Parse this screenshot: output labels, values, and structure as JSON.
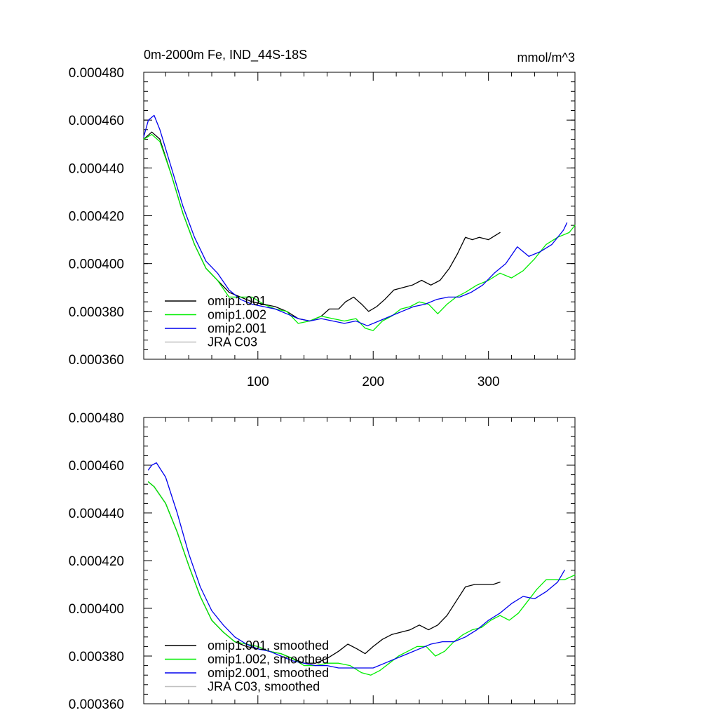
{
  "chart_data": [
    {
      "type": "line",
      "title": "0m-2000m Fe, IND_44S-18S",
      "units": "mmol/m^3",
      "xlim": [
        1,
        375
      ],
      "ylim": [
        0.00036,
        0.00048
      ],
      "yticks": [
        "0.000360",
        "0.000380",
        "0.000400",
        "0.000420",
        "0.000440",
        "0.000460",
        "0.000480"
      ],
      "xticks": [
        "100",
        "200",
        "300"
      ],
      "show_x_labels": true,
      "legend_position": "bottom-left",
      "series": [
        {
          "name": "omip1.001",
          "color": "#000000",
          "x": [
            1,
            8,
            15,
            25,
            35,
            45,
            55,
            65,
            75,
            85,
            95,
            105,
            115,
            125,
            135,
            145,
            155,
            162,
            170,
            176,
            183,
            190,
            196,
            203,
            210,
            218,
            226,
            234,
            242,
            250,
            258,
            266,
            273,
            280,
            286,
            292,
            300,
            310
          ],
          "y": [
            0.000452,
            0.000455,
            0.000452,
            0.000437,
            0.000421,
            0.000408,
            0.000398,
            0.000393,
            0.000388,
            0.000386,
            0.000384,
            0.000383,
            0.000382,
            0.00038,
            0.000377,
            0.000376,
            0.000378,
            0.000381,
            0.000381,
            0.000384,
            0.000386,
            0.000383,
            0.00038,
            0.000382,
            0.000385,
            0.000389,
            0.00039,
            0.000391,
            0.000393,
            0.000391,
            0.000393,
            0.000398,
            0.000404,
            0.000411,
            0.00041,
            0.000411,
            0.00041,
            0.000413
          ]
        },
        {
          "name": "omip1.002",
          "color": "#00ee00",
          "x": [
            1,
            8,
            15,
            25,
            35,
            45,
            55,
            65,
            75,
            85,
            95,
            105,
            115,
            125,
            135,
            145,
            155,
            165,
            175,
            185,
            193,
            200,
            208,
            216,
            224,
            232,
            240,
            248,
            256,
            264,
            272,
            280,
            290,
            300,
            310,
            320,
            330,
            340,
            350,
            360,
            370,
            375
          ],
          "y": [
            0.000452,
            0.000454,
            0.000451,
            0.000437,
            0.000421,
            0.000408,
            0.000398,
            0.000393,
            0.000386,
            0.000386,
            0.000386,
            0.000383,
            0.000381,
            0.00038,
            0.000375,
            0.000376,
            0.000378,
            0.000377,
            0.000376,
            0.000377,
            0.000373,
            0.000372,
            0.000376,
            0.000378,
            0.000381,
            0.000382,
            0.000384,
            0.000383,
            0.000379,
            0.000383,
            0.000386,
            0.000388,
            0.000391,
            0.000393,
            0.000396,
            0.000394,
            0.000397,
            0.000402,
            0.000408,
            0.000411,
            0.000413,
            0.000416
          ]
        },
        {
          "name": "omip2.001",
          "color": "#0000ee",
          "x": [
            1,
            5,
            10,
            15,
            25,
            35,
            45,
            55,
            65,
            75,
            85,
            95,
            105,
            115,
            125,
            135,
            145,
            155,
            165,
            175,
            185,
            195,
            205,
            215,
            225,
            235,
            245,
            255,
            265,
            275,
            285,
            295,
            305,
            315,
            325,
            335,
            345,
            355,
            365,
            368
          ],
          "y": [
            0.000453,
            0.00046,
            0.000462,
            0.000456,
            0.00044,
            0.000424,
            0.000411,
            0.000401,
            0.000396,
            0.000389,
            0.000385,
            0.000383,
            0.000382,
            0.000381,
            0.000379,
            0.000377,
            0.000376,
            0.000377,
            0.000376,
            0.000375,
            0.000376,
            0.000374,
            0.000376,
            0.000378,
            0.00038,
            0.000382,
            0.000383,
            0.000385,
            0.000386,
            0.000386,
            0.000388,
            0.000391,
            0.000396,
            0.0004,
            0.000407,
            0.000403,
            0.000405,
            0.000408,
            0.000414,
            0.000417
          ]
        },
        {
          "name": "JRA C03",
          "color": "#c0c0c0",
          "x": [],
          "y": []
        }
      ]
    },
    {
      "type": "line",
      "title": "",
      "units": "",
      "xlim": [
        1,
        375
      ],
      "ylim": [
        0.00036,
        0.00048
      ],
      "yticks": [
        "0.000360",
        "0.000380",
        "0.000400",
        "0.000420",
        "0.000440",
        "0.000460",
        "0.000480"
      ],
      "xticks": [],
      "show_x_labels": false,
      "legend_position": "bottom-left",
      "series": [
        {
          "name": "omip1.001, smoothed",
          "color": "#000000",
          "x": [
            5,
            10,
            20,
            30,
            40,
            50,
            60,
            70,
            80,
            90,
            100,
            110,
            120,
            130,
            140,
            150,
            160,
            170,
            178,
            186,
            193,
            200,
            208,
            216,
            224,
            232,
            240,
            248,
            256,
            264,
            272,
            280,
            288,
            296,
            304,
            310
          ],
          "y": [
            0.000453,
            0.000451,
            0.000444,
            0.000432,
            0.000418,
            0.000405,
            0.000395,
            0.00039,
            0.000386,
            0.000384,
            0.000383,
            0.000382,
            0.000381,
            0.000379,
            0.000377,
            0.000377,
            0.000379,
            0.000382,
            0.000385,
            0.000383,
            0.000381,
            0.000384,
            0.000387,
            0.000389,
            0.00039,
            0.000391,
            0.000393,
            0.000391,
            0.000393,
            0.000397,
            0.000403,
            0.000409,
            0.00041,
            0.00041,
            0.00041,
            0.000411
          ]
        },
        {
          "name": "omip1.002, smoothed",
          "color": "#00ee00",
          "x": [
            5,
            10,
            20,
            30,
            40,
            50,
            60,
            70,
            80,
            90,
            100,
            110,
            120,
            130,
            140,
            150,
            160,
            170,
            180,
            190,
            198,
            206,
            214,
            222,
            230,
            238,
            246,
            254,
            262,
            270,
            278,
            286,
            294,
            302,
            310,
            318,
            326,
            334,
            342,
            350,
            358,
            366,
            375
          ],
          "y": [
            0.000453,
            0.000451,
            0.000444,
            0.000432,
            0.000418,
            0.000405,
            0.000395,
            0.00039,
            0.000386,
            0.000385,
            0.000384,
            0.000382,
            0.000381,
            0.000379,
            0.000376,
            0.000376,
            0.000377,
            0.000377,
            0.000376,
            0.000373,
            0.000372,
            0.000374,
            0.000377,
            0.00038,
            0.000382,
            0.000384,
            0.000384,
            0.00038,
            0.000382,
            0.000386,
            0.000389,
            0.000391,
            0.000392,
            0.000395,
            0.000397,
            0.000395,
            0.000398,
            0.000403,
            0.000408,
            0.000412,
            0.000412,
            0.000412,
            0.000414
          ]
        },
        {
          "name": "omip2.001, smoothed",
          "color": "#0000ee",
          "x": [
            5,
            8,
            12,
            20,
            30,
            40,
            50,
            60,
            70,
            80,
            90,
            100,
            110,
            120,
            130,
            140,
            150,
            160,
            170,
            180,
            190,
            200,
            210,
            220,
            230,
            240,
            250,
            260,
            270,
            280,
            290,
            300,
            310,
            320,
            330,
            340,
            350,
            360,
            366
          ],
          "y": [
            0.000458,
            0.00046,
            0.000461,
            0.000455,
            0.00044,
            0.000423,
            0.000409,
            0.000399,
            0.000393,
            0.000388,
            0.000385,
            0.000383,
            0.000382,
            0.00038,
            0.000378,
            0.000377,
            0.000376,
            0.000376,
            0.000375,
            0.000375,
            0.000375,
            0.000375,
            0.000377,
            0.000379,
            0.000381,
            0.000383,
            0.000385,
            0.000386,
            0.000386,
            0.000388,
            0.000391,
            0.000395,
            0.000398,
            0.000402,
            0.000405,
            0.000404,
            0.000407,
            0.000411,
            0.000416
          ]
        },
        {
          "name": "JRA C03, smoothed",
          "color": "#c0c0c0",
          "x": [],
          "y": []
        }
      ]
    }
  ]
}
